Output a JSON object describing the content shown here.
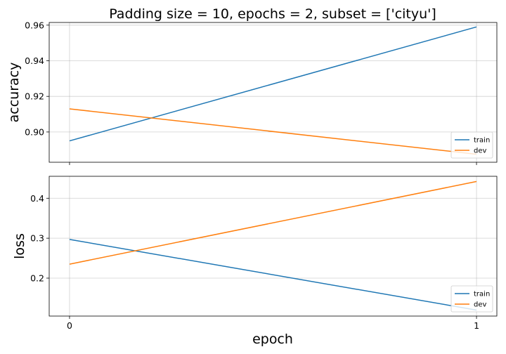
{
  "chart_data": {
    "type": "line",
    "title": "Padding size = 10, epochs = 2, subset = ['cityu']",
    "xlabel": "epoch",
    "x": [
      0,
      1
    ],
    "x_tick_labels": [
      "0",
      "1"
    ],
    "xlim": [
      -0.05,
      1.05
    ],
    "grid": true,
    "subplots": [
      {
        "ylabel": "accuracy",
        "ylim": [
          0.883,
          0.9615
        ],
        "y_ticks": [
          0.9,
          0.92,
          0.94,
          0.96
        ],
        "y_tick_labels": [
          "0.90",
          "0.92",
          "0.94",
          "0.96"
        ],
        "legend_position": "lower right",
        "series": [
          {
            "name": "train",
            "color": "#1f77b4",
            "values": [
              0.895,
              0.959
            ]
          },
          {
            "name": "dev",
            "color": "#ff7f0e",
            "values": [
              0.913,
              0.8875
            ]
          }
        ]
      },
      {
        "ylabel": "loss",
        "ylim": [
          0.105,
          0.455
        ],
        "y_ticks": [
          0.2,
          0.3,
          0.4
        ],
        "y_tick_labels": [
          "0.2",
          "0.3",
          "0.4"
        ],
        "legend_position": "lower right",
        "series": [
          {
            "name": "train",
            "color": "#1f77b4",
            "values": [
              0.297,
              0.12
            ]
          },
          {
            "name": "dev",
            "color": "#ff7f0e",
            "values": [
              0.235,
              0.442
            ]
          }
        ]
      }
    ]
  }
}
